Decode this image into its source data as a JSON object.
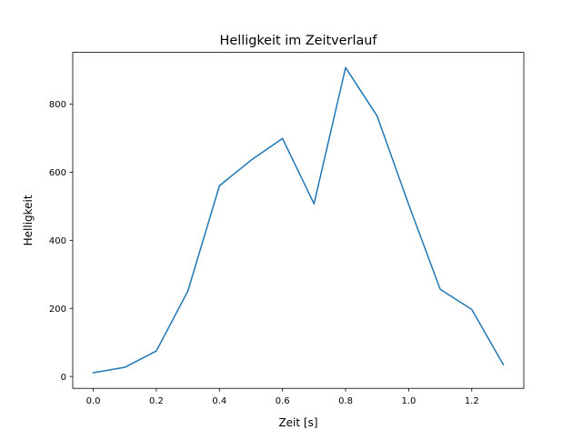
{
  "chart_data": {
    "type": "line",
    "title": "Helligkeit im Zeitverlauf",
    "xlabel": "Zeit [s]",
    "ylabel": "Helligkeit",
    "x": [
      0.0,
      0.1,
      0.2,
      0.3,
      0.4,
      0.5,
      0.6,
      0.7,
      0.8,
      0.9,
      1.0,
      1.1,
      1.2,
      1.3
    ],
    "series": [
      {
        "name": "Helligkeit",
        "color": "#1f77b4",
        "values": [
          11,
          27,
          75,
          251,
          560,
          635,
          699,
          507,
          907,
          765,
          505,
          256,
          197,
          35
        ]
      }
    ],
    "xlim": [
      -0.065,
      1.365
    ],
    "ylim": [
      -34.8,
      951.8
    ],
    "xticks": [
      0.0,
      0.2,
      0.4,
      0.6,
      0.8,
      1.0,
      1.2
    ],
    "xtick_labels": [
      "0.0",
      "0.2",
      "0.4",
      "0.6",
      "0.8",
      "1.0",
      "1.2"
    ],
    "yticks": [
      0,
      200,
      400,
      600,
      800
    ],
    "ytick_labels": [
      "0",
      "200",
      "400",
      "600",
      "800"
    ],
    "grid": false,
    "legend": "none"
  }
}
